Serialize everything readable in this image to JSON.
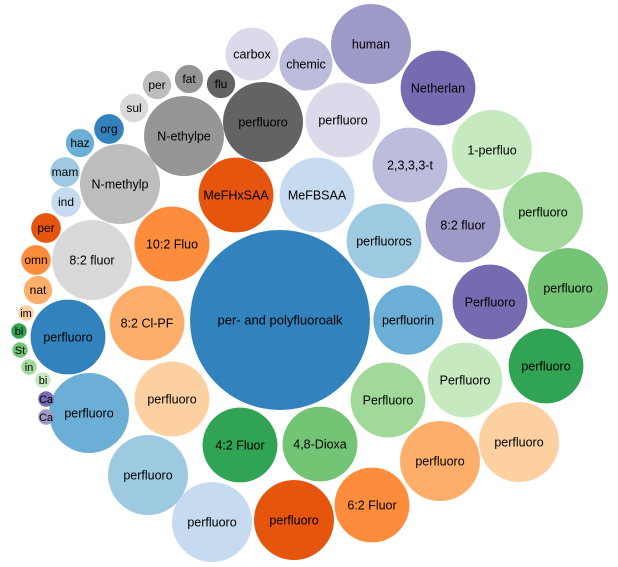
{
  "chart_data": {
    "type": "bubble",
    "categories": [
      "per- and polyfluoroalk",
      "perfluorin",
      "perfluoros",
      "MeFBSAA",
      "MeFHxSAA",
      "10:2 Fluo",
      "8:2 Cl-PF",
      "perfluoro",
      "4:2 Fluor",
      "4,8-Dioxa",
      "Perfluoro",
      "Perfluoro",
      "Perfluoro",
      "8:2 fluor",
      "2,3,3,3-t",
      "perfluoro",
      "perfluoro",
      "N-ethylpe",
      "N-methylp",
      "8:2 fluor",
      "perfluoro",
      "perfluoro",
      "perfluoro",
      "perfluoro",
      "perfluoro",
      "6:2 Fluor",
      "perfluoro",
      "perfluoro",
      "perfluoro",
      "perfluoro",
      "perfluoro",
      "1-perfluo",
      "Netherlan",
      "human",
      "chemic",
      "carbox",
      "flu",
      "fat",
      "per",
      "sul",
      "org",
      "haz",
      "mam",
      "ind",
      "per",
      "omn",
      "nat",
      "im",
      "bl",
      "St",
      "in",
      "bi",
      "Ca",
      "Ca"
    ],
    "values": [
      81,
      12,
      14,
      14,
      14,
      14,
      14,
      14,
      14,
      14,
      14,
      14,
      14,
      14,
      14,
      14,
      16,
      16,
      16,
      16,
      14,
      16,
      16,
      16,
      16,
      14,
      16,
      16,
      14,
      16,
      16,
      16,
      14,
      16,
      7,
      7,
      2,
      2,
      2,
      2,
      2.2,
      2,
      2.2,
      2.2,
      2.2,
      2.2,
      2,
      0.6,
      0.6,
      0.6,
      0.6,
      0.6,
      0.6,
      0.6
    ],
    "colors": [
      "#3182bd",
      "#6baed6",
      "#9ecae1",
      "#c6dbef",
      "#e6550d",
      "#fd8d3c",
      "#fdae6b",
      "#fdd0a2",
      "#31a354",
      "#74c476",
      "#a1d99b",
      "#c7e9c0",
      "#756bb1",
      "#9e9ac8",
      "#bcbddc",
      "#dadaeb",
      "#636363",
      "#969696",
      "#bdbdbd",
      "#d9d9d9",
      "#3182bd",
      "#6baed6",
      "#9ecae1",
      "#c6dbef",
      "#e6550d",
      "#fd8d3c",
      "#fdae6b",
      "#fdd0a2",
      "#31a354",
      "#74c476",
      "#a1d99b",
      "#c7e9c0",
      "#756bb1",
      "#9e9ac8",
      "#bcbddc",
      "#dadaeb",
      "#636363",
      "#969696",
      "#bdbdbd",
      "#d9d9d9",
      "#3182bd",
      "#6baed6",
      "#9ecae1",
      "#c6dbef",
      "#e6550d",
      "#fd8d3c",
      "#fdae6b",
      "#fdd0a2",
      "#31a354",
      "#74c476",
      "#a1d99b",
      "#c7e9c0",
      "#756bb1",
      "#9e9ac8"
    ]
  }
}
